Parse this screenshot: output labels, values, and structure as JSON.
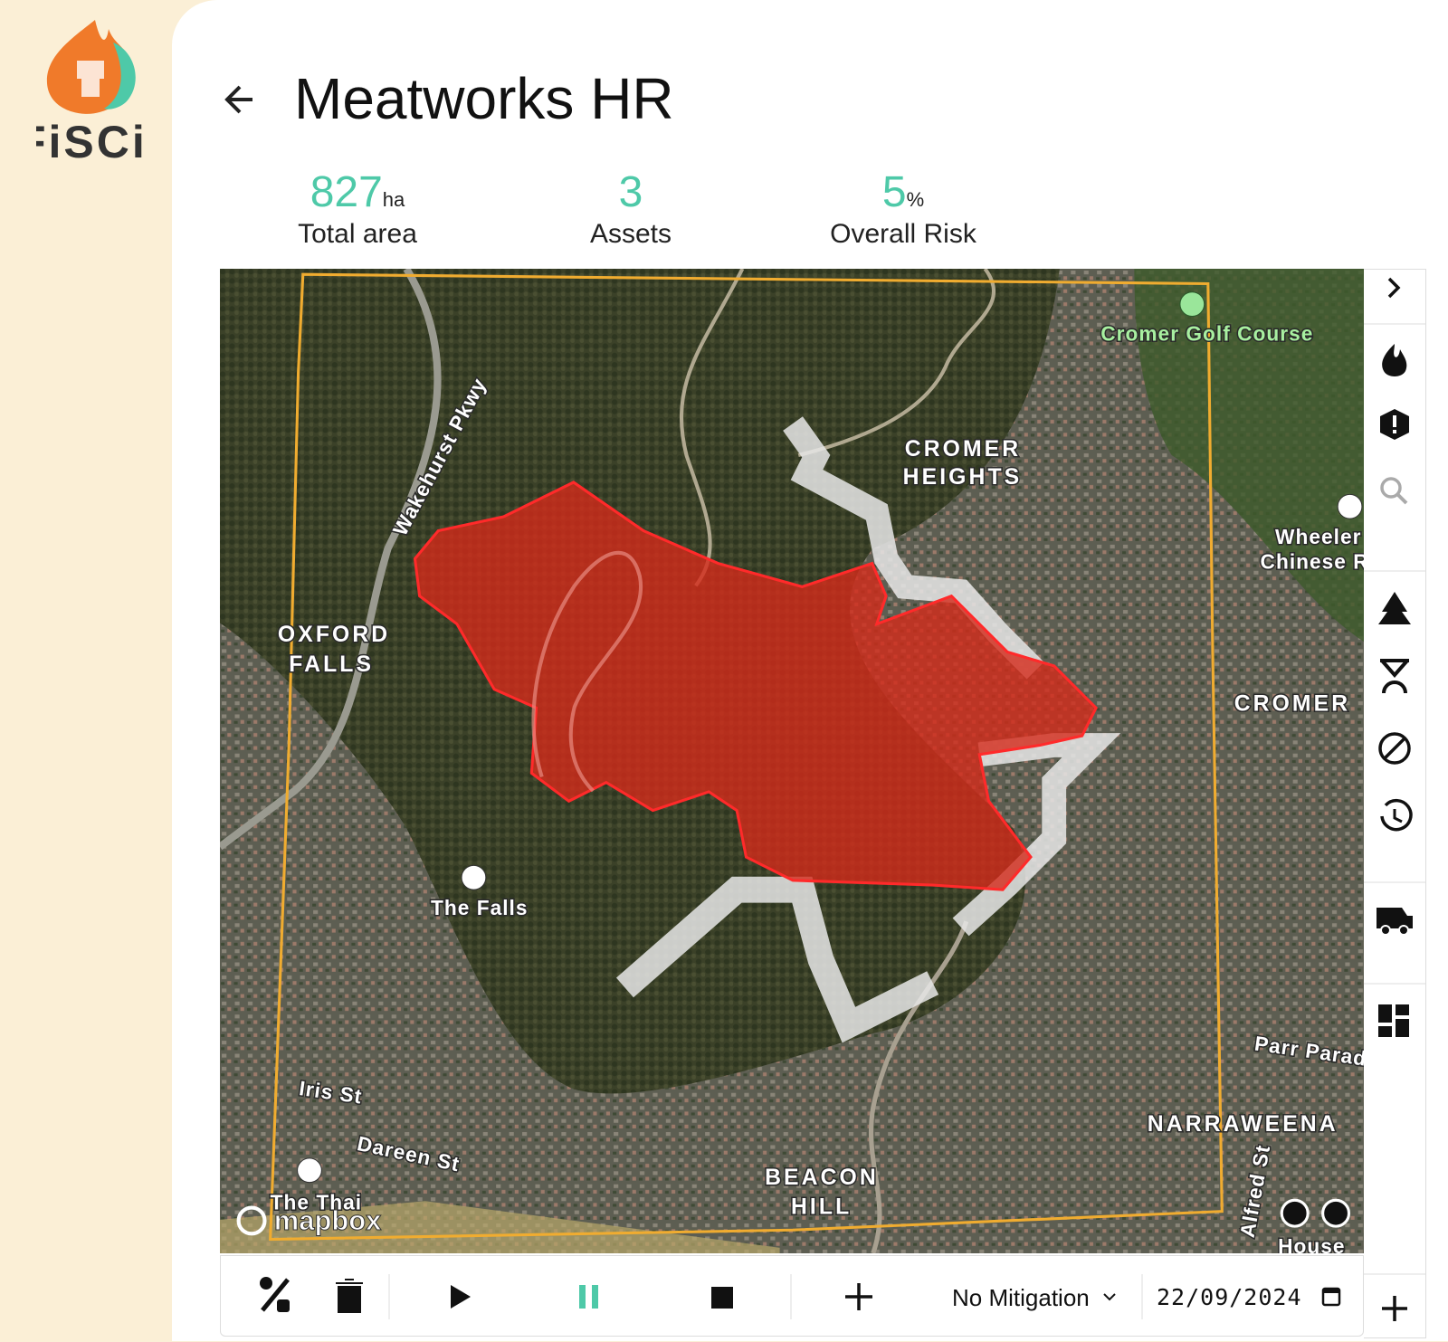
{
  "logo": {
    "text": "FiSCi"
  },
  "header": {
    "title": "Meatworks HR"
  },
  "stats": [
    {
      "value": 827,
      "unit": "ha",
      "label": "Total area"
    },
    {
      "value": 3,
      "label": "Assets"
    },
    {
      "value": 5,
      "unit": "%",
      "label": "Overall Risk"
    }
  ],
  "map": {
    "labels": [
      "Cromer Golf Course",
      "CROMER",
      "HEIGHTS",
      "Wakehurst Pkwy",
      "OXFORD",
      "FALLS",
      "Wheeler (",
      "Chinese Re",
      "CROMER",
      "The Falls",
      "Iris St",
      "Dareen St",
      "The Thai",
      "BEACON",
      "HILL",
      "NARRAWEENA",
      "Parr Parade",
      "Alfred St",
      "House"
    ],
    "attribution": "mapbox"
  },
  "toolbar": {
    "mitigation": "No Mitigation",
    "date": "22/09/2024"
  }
}
